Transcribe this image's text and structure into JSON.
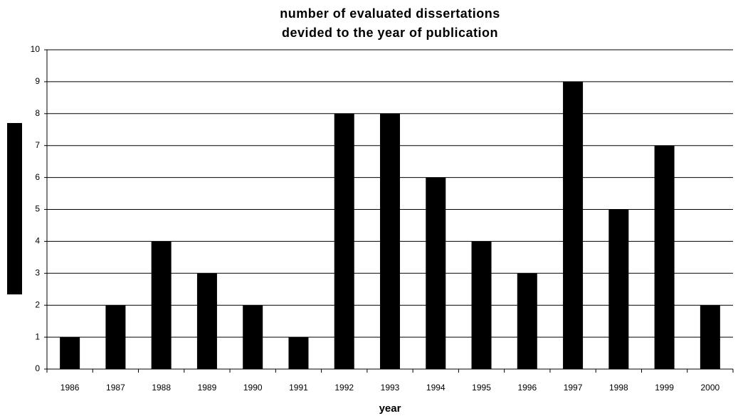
{
  "chart_data": {
    "type": "bar",
    "title": [
      "number of evaluated dissertations",
      "devided to the year of publication"
    ],
    "x_label": "year",
    "categories": [
      "1986",
      "1987",
      "1988",
      "1989",
      "1990",
      "1991",
      "1992",
      "1993",
      "1994",
      "1995",
      "1996",
      "1997",
      "1998",
      "1999",
      "2000"
    ],
    "values": [
      1,
      2,
      4,
      3,
      2,
      1,
      8,
      8,
      6,
      4,
      3,
      9,
      5,
      7,
      2
    ],
    "color": "#000000",
    "ylim": [
      0,
      10
    ],
    "yticks": [
      0,
      1,
      2,
      3,
      4,
      5,
      6,
      7,
      8,
      9,
      10
    ],
    "grid": true
  }
}
